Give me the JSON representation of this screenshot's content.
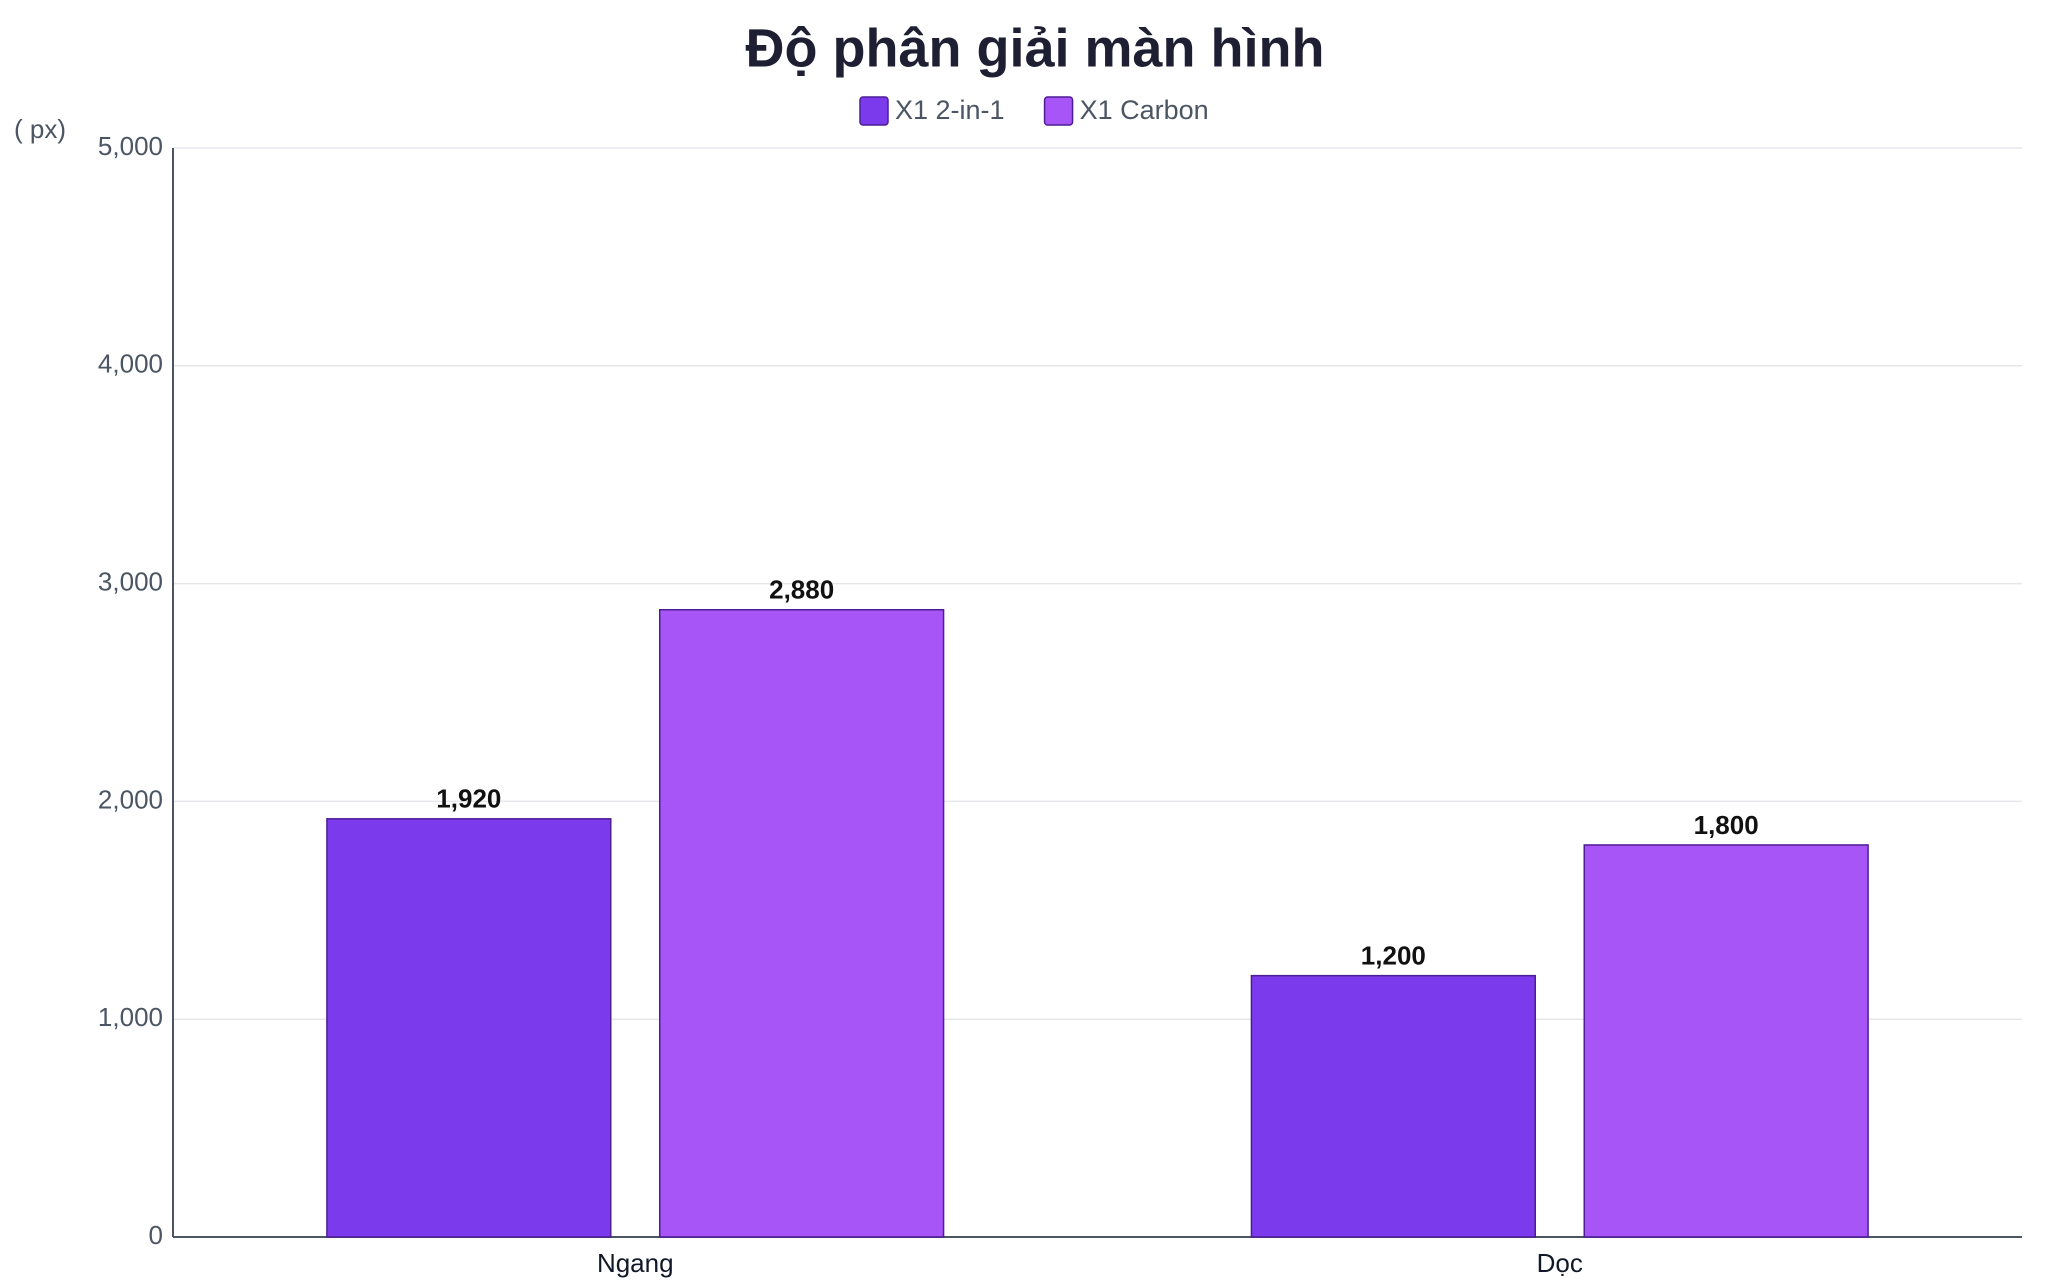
{
  "chart_data": {
    "type": "bar",
    "title": "Độ phân giải màn hình",
    "y_axis_label": "( px)",
    "categories": [
      "Ngang",
      "Dọc"
    ],
    "series": [
      {
        "name": "X1 2-in-1",
        "color": "#7c3aed",
        "values": [
          1920,
          1200
        ],
        "value_labels": [
          "1,920",
          "1,200"
        ]
      },
      {
        "name": "X1 Carbon",
        "color": "#a855f7",
        "values": [
          2880,
          1800
        ],
        "value_labels": [
          "2,880",
          "1,800"
        ]
      }
    ],
    "ylim": [
      0,
      5000
    ],
    "yticks": [
      0,
      {
        "value": 1000,
        "label": "1,000"
      },
      {
        "value": 2000,
        "label": "2,000"
      },
      {
        "value": 3000,
        "label": "3,000"
      },
      {
        "value": 4000,
        "label": "4,000"
      },
      {
        "value": 5000,
        "label": "5,000"
      }
    ],
    "grid": true
  }
}
